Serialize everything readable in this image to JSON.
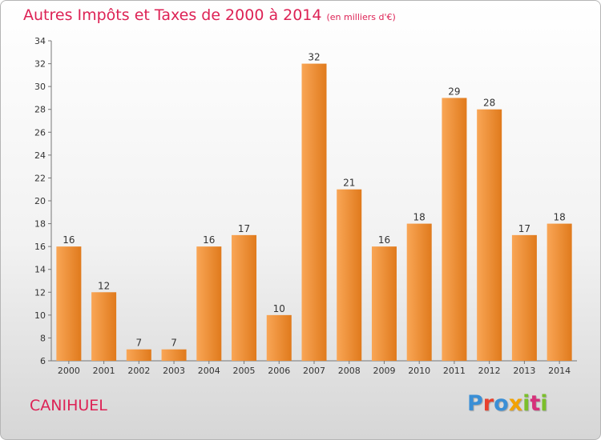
{
  "header": {
    "title": "Autres Impôts et Taxes de 2000 à 2014",
    "subtitle": "(en milliers d'€)"
  },
  "footer": {
    "location": "CANIHUEL",
    "logo": "Proxiti",
    "logo_colors": [
      "#3a8fd6",
      "#e8412d",
      "#3a8fd6",
      "#f2a200",
      "#7bbf2a",
      "#d6317a",
      "#7bbf2a"
    ]
  },
  "chart_data": {
    "type": "bar",
    "categories": [
      "2000",
      "2001",
      "2002",
      "2003",
      "2004",
      "2005",
      "2006",
      "2007",
      "2008",
      "2009",
      "2010",
      "2011",
      "2012",
      "2013",
      "2014"
    ],
    "values": [
      16,
      12,
      7,
      7,
      16,
      17,
      10,
      32,
      21,
      16,
      18,
      29,
      28,
      17,
      18
    ],
    "title": "Autres Impôts et Taxes de 2000 à 2014",
    "subtitle": "(en milliers d'€)",
    "ylim": [
      6,
      34
    ],
    "yticks": [
      6,
      8,
      10,
      12,
      14,
      16,
      18,
      20,
      22,
      24,
      26,
      28,
      30,
      32,
      34
    ],
    "grid": false,
    "bar_color_light": "#f9a656",
    "bar_color_dark": "#e07a1c"
  }
}
